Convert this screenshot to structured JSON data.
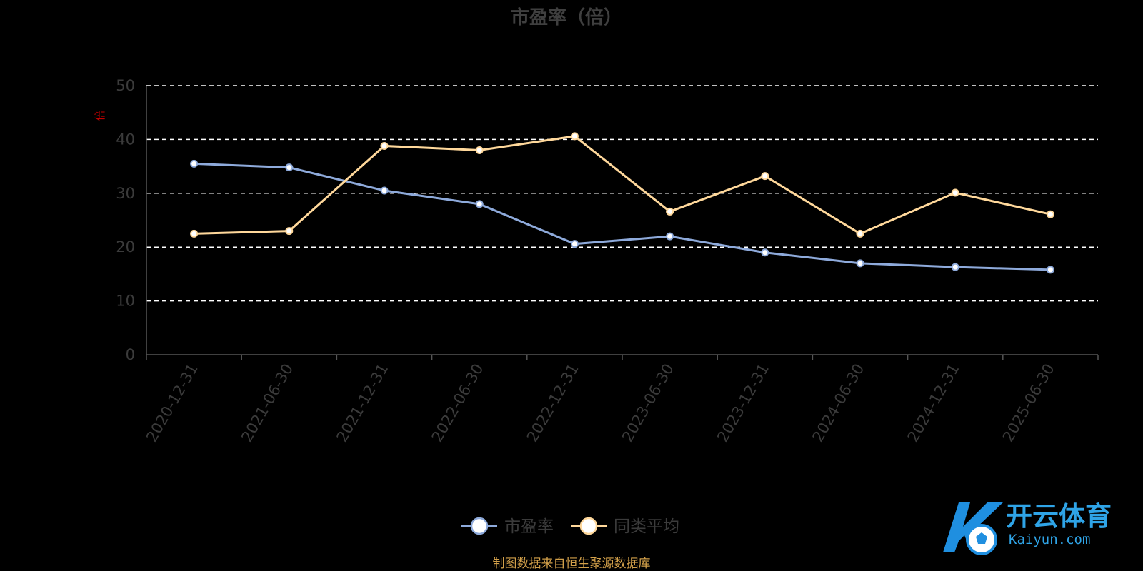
{
  "chart_data": {
    "type": "line",
    "title": "市盈率（倍）",
    "unit_label": "倍",
    "x": [
      "2020-12-31",
      "2021-06-30",
      "2021-12-31",
      "2022-06-30",
      "2022-12-31",
      "2023-06-30",
      "2023-12-31",
      "2024-06-30",
      "2024-12-31",
      "2025-06-30"
    ],
    "ylim": [
      0,
      50
    ],
    "yticks": [
      "0",
      "10",
      "20",
      "30",
      "40",
      "50"
    ],
    "grid": true,
    "legend_position": "bottom-center",
    "series": [
      {
        "name": "市盈率",
        "color": "#8eaadb",
        "values": [
          35.5,
          34.8,
          30.5,
          28.0,
          20.6,
          22.0,
          19.0,
          17.0,
          16.3,
          15.8
        ]
      },
      {
        "name": "同类平均",
        "color": "#ffd89b",
        "values": [
          22.5,
          23.0,
          38.8,
          38.0,
          40.6,
          26.6,
          33.2,
          22.5,
          30.1,
          26.1
        ]
      }
    ]
  },
  "source_note": "制图数据来自恒生聚源数据库",
  "watermark": {
    "name_cn": "开云体育",
    "name_en": "Kaiyun.com",
    "color": "#2fa4e7"
  }
}
